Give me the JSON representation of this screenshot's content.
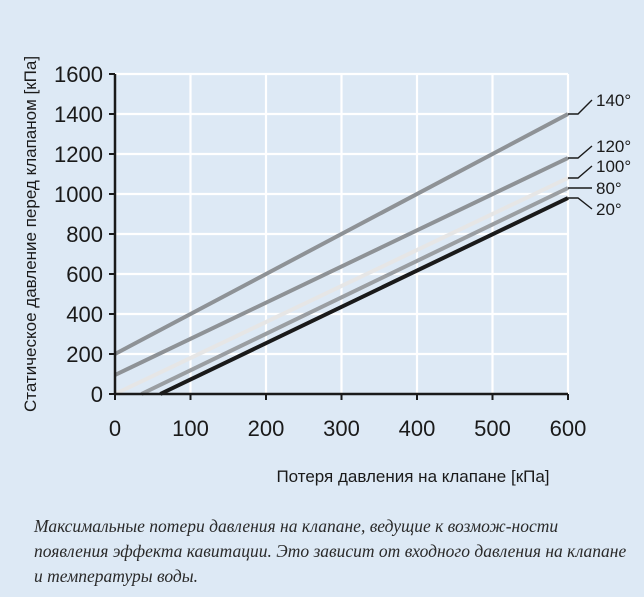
{
  "chart_data": {
    "type": "line",
    "xlabel": "Потеря давления на клапане [кПа]",
    "ylabel": "Статическое давление перед клапаном [кПа]",
    "xlim": [
      0,
      600
    ],
    "ylim": [
      0,
      1600
    ],
    "x_ticks": [
      "0",
      "100",
      "200",
      "300",
      "400",
      "500",
      "600"
    ],
    "y_ticks": [
      "0",
      "200",
      "400",
      "600",
      "800",
      "1000",
      "1200",
      "1400",
      "1600"
    ],
    "grid": true,
    "series": [
      {
        "name": "140°",
        "color": "#8e9296",
        "x": [
          0,
          600
        ],
        "y": [
          200,
          1400
        ]
      },
      {
        "name": "120°",
        "color": "#8e9296",
        "x": [
          0,
          600
        ],
        "y": [
          95,
          1180
        ]
      },
      {
        "name": "100°",
        "color": "#e6e6e6",
        "x": [
          0,
          600
        ],
        "y": [
          0,
          1080
        ]
      },
      {
        "name": "80°",
        "color": "#9a9ea2",
        "x": [
          35,
          600
        ],
        "y": [
          0,
          1030
        ]
      },
      {
        "name": "20°",
        "color": "#1a1a1a",
        "x": [
          60,
          600
        ],
        "y": [
          0,
          980
        ]
      }
    ]
  },
  "caption": "Максимальные потери давления на клапане, ведущие к возмож-ности появления эффекта кавитации. Это зависит от входного давления на клапане и температуры воды."
}
